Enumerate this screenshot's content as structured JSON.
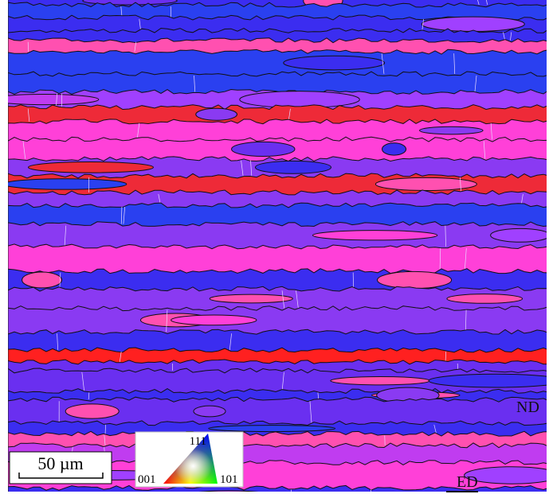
{
  "scale_bar": {
    "label": "50 µm"
  },
  "legend": {
    "top": "111",
    "left": "001",
    "right": "101"
  },
  "axes": {
    "nd": "ND",
    "ed": "ED"
  }
}
